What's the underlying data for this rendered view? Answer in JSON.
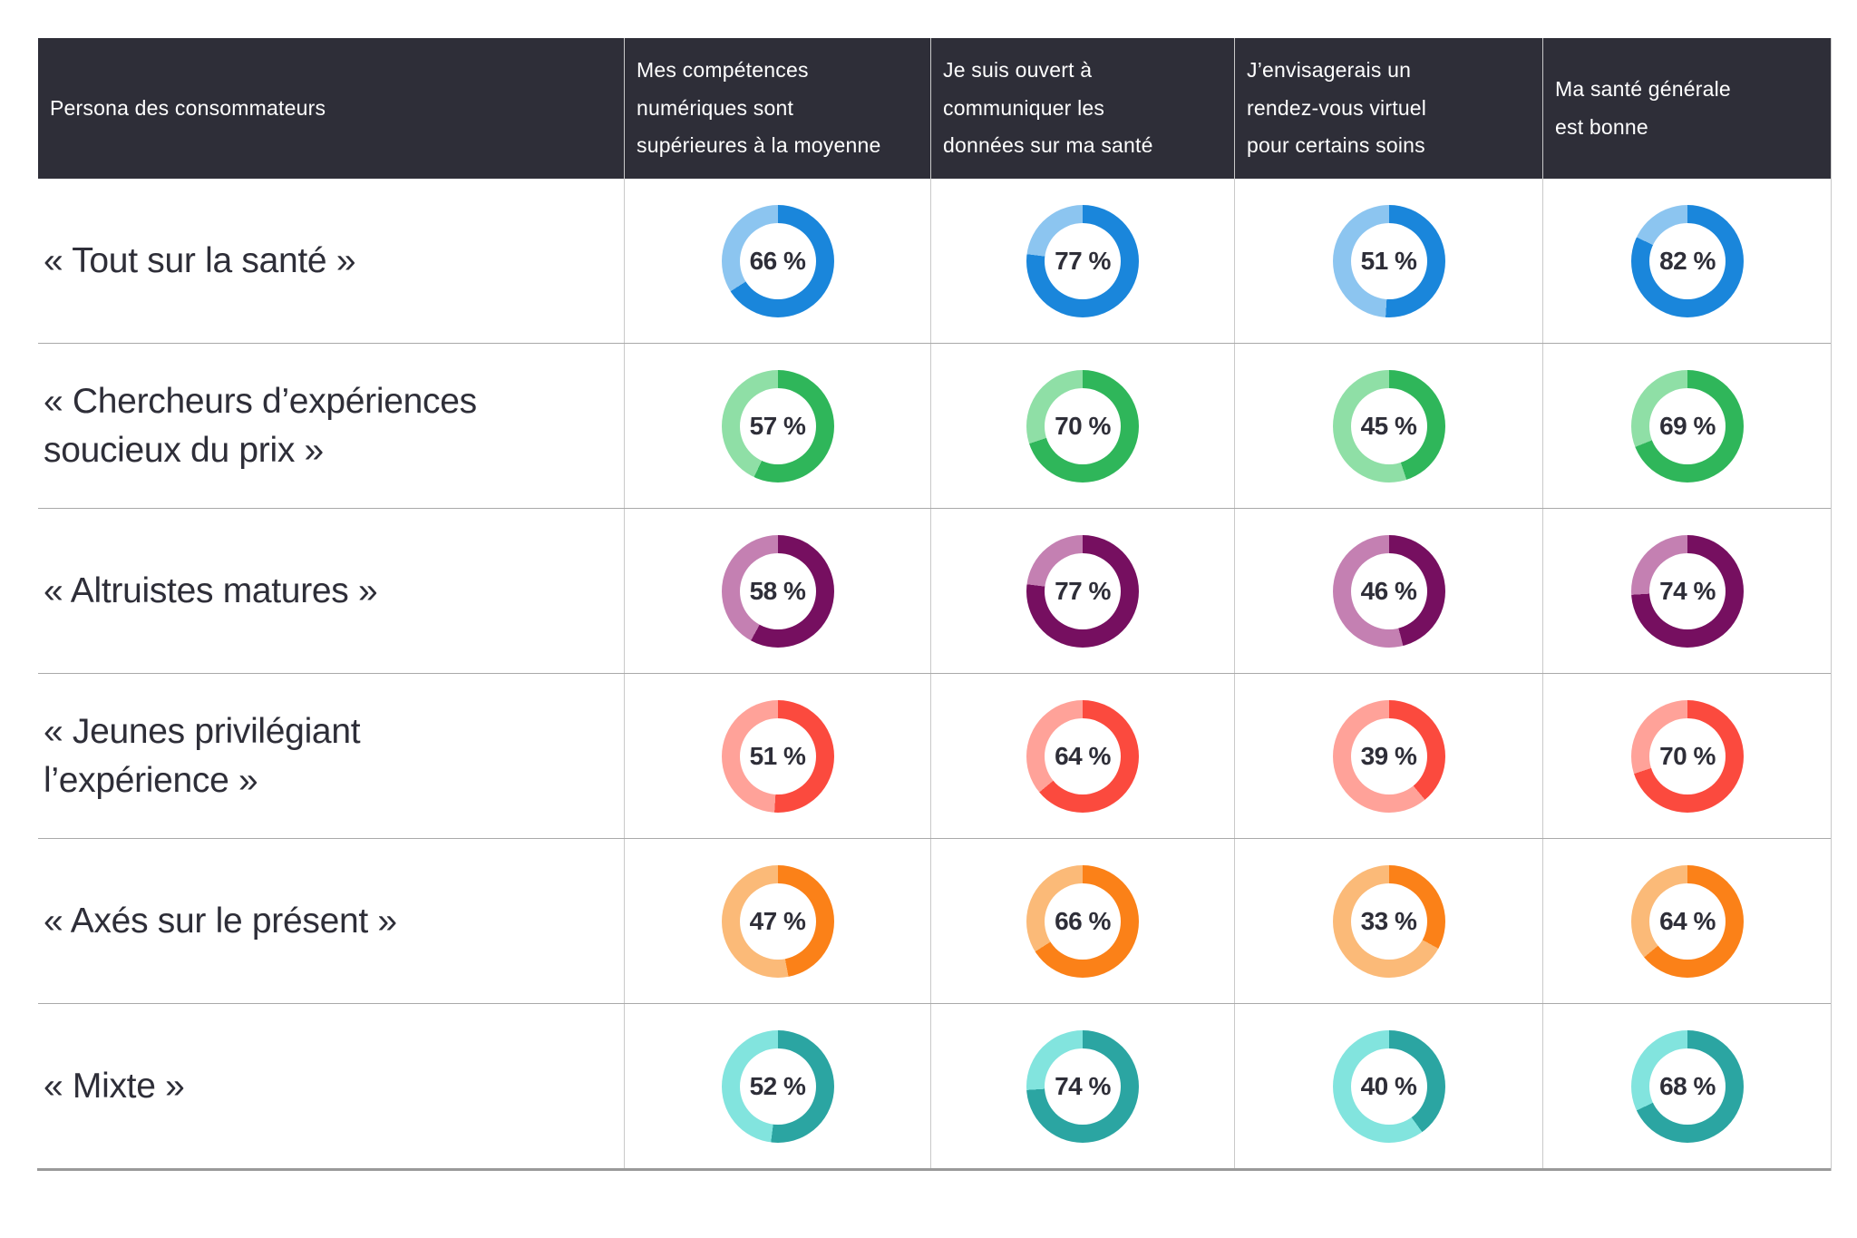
{
  "chart_data": {
    "type": "table",
    "subtype": "donut-matrix",
    "row_header": "Persona des consommateurs",
    "columns": [
      "Mes compétences\nnumériques sont\nsupérieures à la moyenne",
      "Je suis ouvert à\ncommuniquer les\ndonnées sur ma santé",
      "J’envisagerais un\nrendez-vous virtuel\npour certains soins",
      "Ma santé générale\nest bonne"
    ],
    "value_suffix": " %",
    "series": [
      {
        "name": "« Tout sur la santé »",
        "color": "#1a86db",
        "tint": "#8cc5f0",
        "values": [
          66,
          77,
          51,
          82
        ]
      },
      {
        "name": "« Chercheurs d’expériences\nsoucieux du prix »",
        "color": "#2fb65a",
        "tint": "#8fdfa6",
        "values": [
          57,
          70,
          45,
          69
        ]
      },
      {
        "name": "« Altruistes matures »",
        "color": "#760f60",
        "tint": "#c480b2",
        "values": [
          58,
          77,
          46,
          74
        ]
      },
      {
        "name": "« Jeunes privilégiant\nl’expérience »",
        "color": "#fb4a3e",
        "tint": "#ffa299",
        "values": [
          51,
          64,
          39,
          70
        ]
      },
      {
        "name": "« Axés sur le présent »",
        "color": "#fb8118",
        "tint": "#fbba78",
        "values": [
          47,
          66,
          33,
          64
        ]
      },
      {
        "name": "« Mixte »",
        "color": "#2ba5a2",
        "tint": "#82e4de",
        "values": [
          52,
          74,
          40,
          68
        ]
      }
    ]
  },
  "colors": {
    "header_bg": "#2e2e38",
    "text_dark": "#2e2e38",
    "grid_vertical": "#c9c9c9",
    "grid_horizontal": "#a9a9a9",
    "bottom_rule": "#9a9a9a",
    "page_bg": "#ffffff"
  }
}
